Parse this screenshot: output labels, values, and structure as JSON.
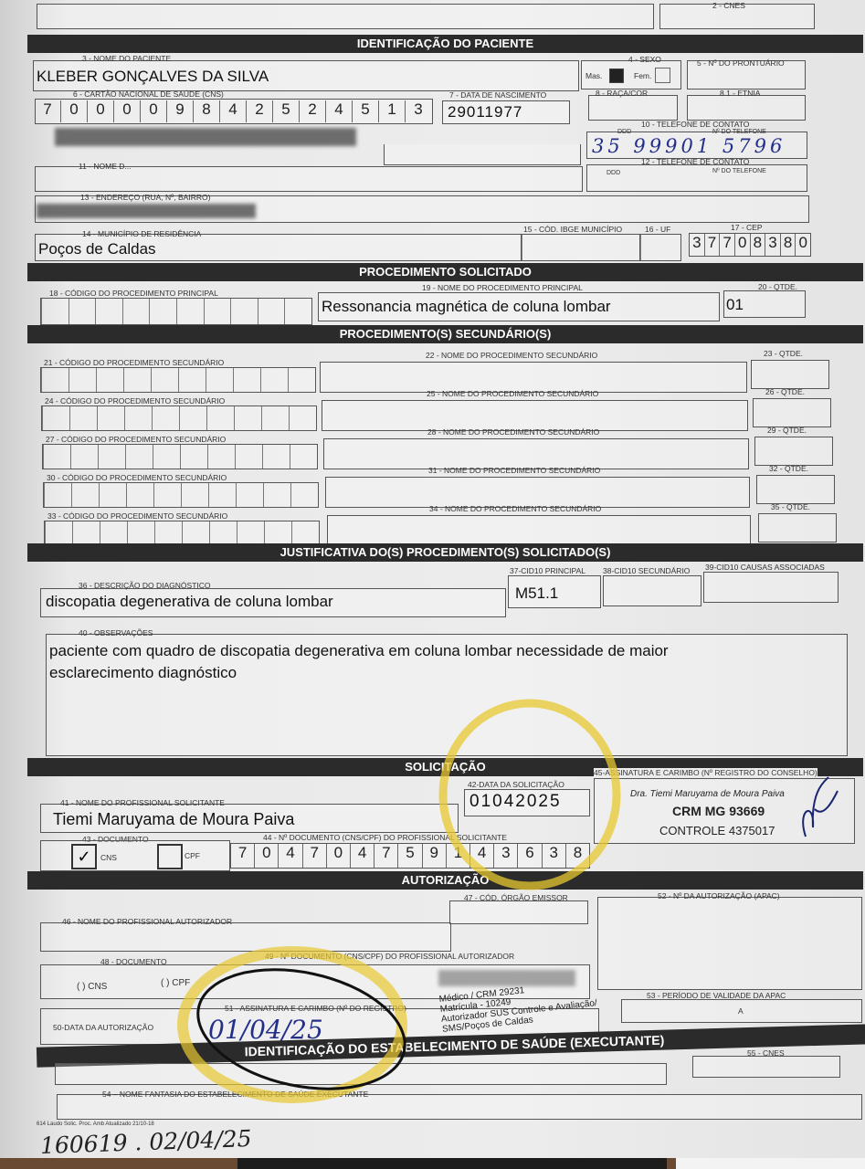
{
  "top": {
    "cnes_label": "2 - CNES"
  },
  "patient": {
    "header": "IDENTIFICAÇÃO DO PACIENTE",
    "name_label": "3 - NOME DO PACIENTE",
    "name": "KLEBER GONÇALVES DA SILVA",
    "sex_label": "4 - SEXO",
    "sex_male": "Mas.",
    "sex_female": "Fem.",
    "sex_selected": "Mas.",
    "record_label": "5 - Nº DO PRONTUÁRIO",
    "cns_label": "6 - CARTÃO NACIONAL DE SAÚDE (CNS)",
    "cns": "700009842524513",
    "birth_label": "7 - DATA DE NASCIMENTO",
    "birth": "29011977",
    "race_label": "8 - RAÇA/COR",
    "ethnicity_label": "8.1 - ETNIA",
    "phone1_label": "10 - TELEFONE DE CONTATO",
    "ddd_label": "DDD",
    "phone_number_label": "Nº DO TELEFONE",
    "phone1": "35 99901 5796",
    "mother_label": "11 - NOME D...",
    "phone2_label": "12 - TELEFONE DE CONTATO",
    "address_label": "13 - ENDEREÇO (RUA, Nº, BAIRRO)",
    "city_label": "14 - MUNICÍPIO DE RESIDÊNCIA",
    "city": "Poços de Caldas",
    "ibge_label": "15 - CÓD. IBGE MUNICÍPIO",
    "uf_label": "16 - UF",
    "cep_label": "17 - CEP",
    "cep": "37708380"
  },
  "procedure": {
    "header": "PROCEDIMENTO SOLICITADO",
    "code_label": "18 - CÓDIGO DO PROCEDIMENTO PRINCIPAL",
    "name_label": "19 - NOME DO PROCEDIMENTO PRINCIPAL",
    "name": "Ressonancia magnética de coluna lombar",
    "qty_label": "20 - QTDE.",
    "qty": "01"
  },
  "secondary": {
    "header": "PROCEDIMENTO(S) SECUNDÁRIO(S)",
    "rows": [
      {
        "code": "21 - CÓDIGO DO PROCEDIMENTO SECUNDÁRIO",
        "name": "22 - NOME DO PROCEDIMENTO SECUNDÁRIO",
        "qty": "23 - QTDE."
      },
      {
        "code": "24 - CÓDIGO DO PROCEDIMENTO SECUNDÁRIO",
        "name": "25 - NOME DO PROCEDIMENTO SECUNDÁRIO",
        "qty": "26 - QTDE."
      },
      {
        "code": "27 - CÓDIGO DO PROCEDIMENTO SECUNDÁRIO",
        "name": "28 - NOME DO PROCEDIMENTO SECUNDÁRIO",
        "qty": "29 - QTDE."
      },
      {
        "code": "30 - CÓDIGO DO PROCEDIMENTO SECUNDÁRIO",
        "name": "31 - NOME DO PROCEDIMENTO SECUNDÁRIO",
        "qty": "32 - QTDE."
      },
      {
        "code": "33 - CÓDIGO DO PROCEDIMENTO SECUNDÁRIO",
        "name": "34 - NOME DO PROCEDIMENTO SECUNDÁRIO",
        "qty": "35 - QTDE."
      }
    ]
  },
  "justification": {
    "header": "JUSTIFICATIVA DO(S) PROCEDIMENTO(S) SOLICITADO(S)",
    "diagnosis_label": "36 - DESCRIÇÃO DO DIAGNÓSTICO",
    "diagnosis": "discopatia degenerativa de coluna lombar",
    "cid_main_label": "37-CID10 PRINCIPAL",
    "cid_main": "M51.1",
    "cid_secondary_label": "38-CID10 SECUNDÁRIO",
    "cid_assoc_label": "39-CID10 CAUSAS ASSOCIADAS",
    "notes_label": "40 - OBSERVAÇÕES",
    "notes_line1": "paciente com quadro de discopatia degenerativa em coluna lombar necessidade de maior",
    "notes_line2": "esclarecimento diagnóstico"
  },
  "request": {
    "header": "SOLICITAÇÃO",
    "prof_label": "41 - NOME DO PROFISSIONAL SOLICITANTE",
    "prof": "Tiemi Maruyama de Moura Paiva",
    "date_label": "42-DATA DA SOLICITAÇÃO",
    "date": "01042025",
    "doc_label": "43 - DOCUMENTO",
    "doc_cns": "CNS",
    "doc_cpf": "CPF",
    "doc_checked": "CNS",
    "check": "✓",
    "docnum_label": "44 - Nº DOCUMENTO (CNS/CPF) DO PROFISSIONAL SOLICITANTE",
    "docnum": "704704759143638",
    "sign_label": "45-ASSINATURA E CARIMBO (Nº REGISTRO DO CONSELHO)",
    "stamp_line1": "Dra. Tiemi Maruyama de Moura Paiva",
    "stamp_line2": "CRM MG 93669",
    "stamp_line3": "CONTROLE 4375017"
  },
  "authorization": {
    "header": "AUTORIZAÇÃO",
    "prof_label": "46 - NOME DO PROFISSIONAL AUTORIZADOR",
    "organ_label": "47 - CÓD. ÓRGÃO EMISSOR",
    "doc_label": "48 - DOCUMENTO",
    "doc_cns": "(   ) CNS",
    "doc_cpf": "(   ) CPF",
    "docnum_label": "49 - Nº DOCUMENTO (CNS/CPF) DO PROFISSIONAL AUTORIZADOR",
    "date_label": "50-DATA DA AUTORIZAÇÃO",
    "date": "01/04/25",
    "sign_label": "51 - ASSINATURA E CARIMBO (Nº DO REGISTRO)",
    "stamp_line1": "Médico / CRM 29231",
    "stamp_line2": "Matrícula - 10249",
    "stamp_line3": "Autorizador SUS Controle e Avaliação/",
    "stamp_line4": "SMS/Poços de Caldas",
    "apac_label": "52 - Nº DA AUTORIZAÇÃO (APAC)",
    "validity_label": "53 - PERÍODO DE VALIDADE DA APAC",
    "validity_sep": "a"
  },
  "executor": {
    "header": "IDENTIFICAÇÃO DO ESTABELECIMENTO DE SAÚDE (EXECUTANTE)",
    "name_label": "54 – NOME FANTASIA DO ESTABELECIMENTO DE SAÚDE EXECUTANTE",
    "cnes_label": "55 - CNES"
  },
  "footer": {
    "print_code": "614 Laudo Solic. Proc. Amb Atualizado 21/10-18",
    "handwritten": "160619 . 02/04/25"
  },
  "colors": {
    "highlight": "#e8c830",
    "ink": "#23308a",
    "bar": "#2b2b2b"
  }
}
